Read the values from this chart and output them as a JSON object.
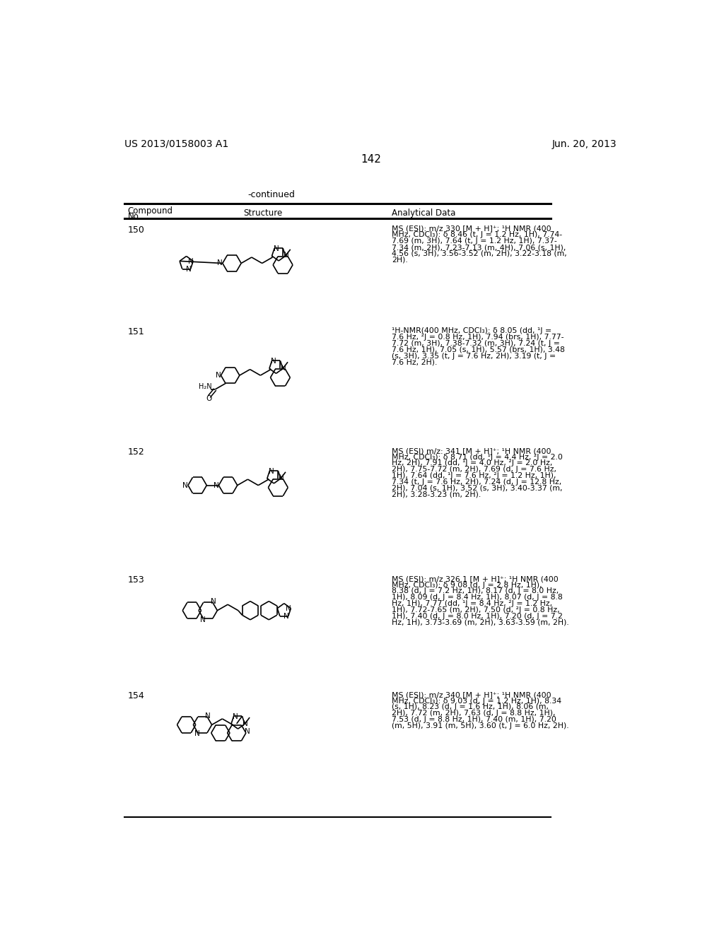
{
  "page_number": "142",
  "patent_number": "US 2013/0158003 A1",
  "patent_date": "Jun. 20, 2013",
  "continued_label": "-continued",
  "background_color": "#ffffff",
  "compounds": [
    {
      "number": "150",
      "ad_lines": [
        "MS (ESI): m/z 330 [M + H]⁺; ¹H NMR (400",
        "MHz, CDCl₃): δ 8.46 (t, J = 1.2 Hz, 1H), 7.74-",
        "7.69 (m, 3H), 7.64 (t, J = 1.2 Hz, 1H), 7.37-",
        "7.34 (m, 2H), 7.23-7.13 (m, 4H), 7.06 (s, 1H),",
        "4.56 (s, 3H), 3.56-3.52 (m, 2H), 3.22-3.18 (m,",
        "2H)."
      ]
    },
    {
      "number": "151",
      "ad_lines": [
        "¹H-NMR(400 MHz, CDCl₃): δ 8.05 (dd, ¹J =",
        "7.6 Hz, ²J = 0.8 Hz, 1H), 7.94 (brs, 1H), 7.77-",
        "7.72 (m, 3H), 7.38-7.32 (m, 3H), 7.24 (t, J =",
        "7.6 Hz, 1H), 7.05 (s, 1H), 5.57 (brs, 1H), 3.48",
        "(s, 3H), 3.35 (t, J = 7.6 Hz, 2H), 3.19 (t, J =",
        "7.6 Hz, 2H)."
      ]
    },
    {
      "number": "152",
      "ad_lines": [
        "MS (ESI) m/z: 341 [M + H]⁺; ¹H NMR (400",
        "MHz, CDCl₃): δ 8.71 (dd, ¹J = 4.4 Hz, ²J = 2.0",
        "Hz, 2H), 7.91 (dd, ¹J = 4.0 Hz, ²J = 2.0 Hz,",
        "2H), 7.75-7.72 (m, 2H), 7.69 (d, J = 7.6 Hz,",
        "1H), 7.64 (dd, ¹J = 7.6 Hz, ²J = 1.2 Hz, 1H),",
        "7.34 (t, J = 7.6 Hz, 2H), 7.24 (d, J = 12.8 Hz,",
        "2H), 7.04 (s, 1H), 3.52 (s, 3H), 3.40-3.37 (m,",
        "2H), 3.28-3.23 (m, 2H)."
      ]
    },
    {
      "number": "153",
      "ad_lines": [
        "MS (ESI): m/z 326.1 [M + H]⁺; ¹H NMR (400",
        "MHz, CDCl₃): δ 9.08 (d, J = 2.8 Hz, 1H),",
        "8.38 (d, J = 7.2 Hz, 1H), 8.17 (d, J = 8.0 Hz,",
        "1H), 8.09 (d, J = 8.4 Hz, 1H), 8.07 (d, J = 8.8",
        "Hz, 1H), 7.77 (dd, ¹J = 8.4 Hz, ²J = 1.2 Hz,",
        "1H), 7.72-7.65 (m, 2H), 7.50 (d, ²J = 0.8 Hz,",
        "1H), 7.40 (d, J = 8.0 Hz, 1H), 7.20 (d, J = 7.2",
        "Hz, 1H), 3.73-3.69 (m, 2H), 3.63-3.59 (m, 2H)."
      ]
    },
    {
      "number": "154",
      "ad_lines": [
        "MS (ESI): m/z 340 [M + H]⁺; ¹H NMR (400",
        "MHz, CDCl₃): δ 9.03 (d, J = 1.2 Hz, 1H), 8.34",
        "(s, 1H), 8.23 (d, J = 1.6 Hz, 1H), 8.06 (m,",
        "2H), 7.72 (m, 2H), 7.63 (d, J = 8.8 Hz, 1H),",
        "7.53 (d, J = 8.8 Hz, 1H), 7.40 (m, 1H), 7.20",
        "(m, 5H), 3.91 (m, 5H), 3.60 (t, J = 6.0 Hz, 2H)."
      ]
    }
  ]
}
